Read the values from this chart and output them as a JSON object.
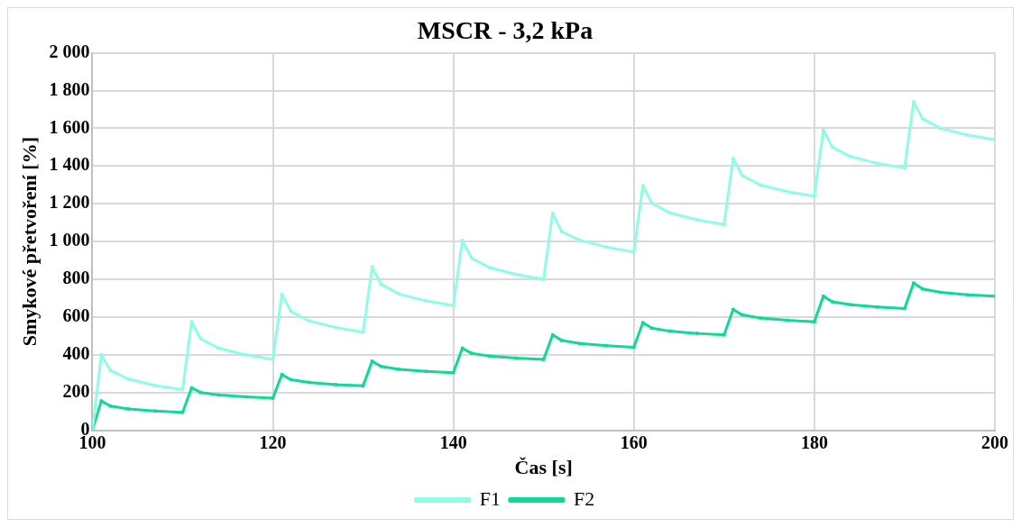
{
  "chart_data": {
    "type": "line",
    "title": "MSCR - 3,2 kPa",
    "xlabel": "Čas [s]",
    "ylabel": "Smykové přetvoření [%]",
    "x": [
      100,
      101,
      102,
      104,
      107,
      110,
      111,
      112,
      114,
      117,
      120,
      121,
      122,
      124,
      127,
      130,
      131,
      132,
      134,
      137,
      140,
      141,
      142,
      144,
      147,
      150,
      151,
      152,
      154,
      157,
      160,
      161,
      162,
      164,
      167,
      170,
      171,
      172,
      174,
      177,
      180,
      181,
      182,
      184,
      187,
      190,
      191,
      192,
      194,
      197,
      200
    ],
    "series": [
      {
        "name": "F1",
        "color": "#8ffce6",
        "values": [
          0,
          400,
          317,
          271,
          237,
          215,
          575,
          485,
          435,
          399,
          375,
          720,
          630,
          580,
          544,
          520,
          865,
          773,
          722,
          685,
          660,
          1005,
          913,
          862,
          825,
          800,
          1150,
          1053,
          1007,
          970,
          945,
          1295,
          1203,
          1152,
          1115,
          1090,
          1440,
          1350,
          1300,
          1264,
          1240,
          1590,
          1500,
          1450,
          1414,
          1390,
          1740,
          1650,
          1600,
          1564,
          1540
        ]
      },
      {
        "name": "F2",
        "color": "#10d998",
        "values": [
          0,
          155,
          128,
          113,
          102,
          95,
          225,
          200,
          187,
          177,
          170,
          295,
          268,
          253,
          242,
          235,
          365,
          338,
          323,
          312,
          305,
          435,
          408,
          393,
          382,
          375,
          505,
          476,
          460,
          448,
          440,
          570,
          541,
          525,
          513,
          505,
          640,
          611,
          595,
          583,
          575,
          710,
          681,
          665,
          653,
          645,
          780,
          749,
          731,
          718,
          710
        ]
      }
    ],
    "xlim": [
      100,
      200
    ],
    "xticks": [
      100,
      120,
      140,
      160,
      180,
      200
    ],
    "ylim": [
      0,
      2000
    ],
    "yticks": [
      0,
      200,
      400,
      600,
      800,
      {
        "value": 1000,
        "label": "1 000"
      },
      {
        "value": 1200,
        "label": "1 200"
      },
      {
        "value": 1400,
        "label": "1 400"
      },
      {
        "value": 1600,
        "label": "1 600"
      },
      {
        "value": 1800,
        "label": "1 800"
      },
      {
        "value": 2000,
        "label": "2 000"
      }
    ],
    "grid": true,
    "legend": "bottom",
    "marker": "square",
    "line_style": "solid"
  }
}
